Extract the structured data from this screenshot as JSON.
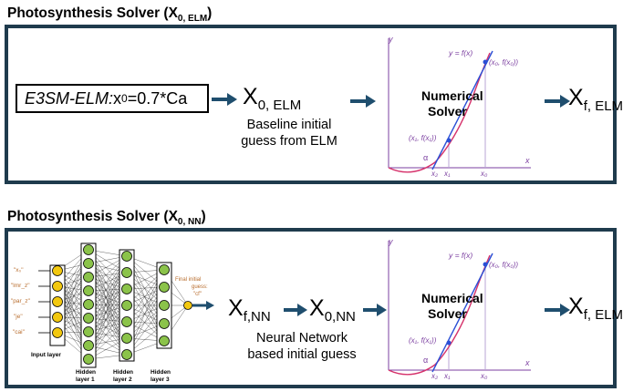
{
  "section1": {
    "title_main": "Photosynthesis Solver (X",
    "title_sub": "0, ELM",
    "title_close": ")",
    "box_label_italic": "E3SM-ELM:",
    "box_formula_pre": " x",
    "box_formula_sub": "0",
    "box_formula_post": "=0.7*Ca",
    "x0_main": "X",
    "x0_sub": "0, ELM",
    "caption_line1": "Baseline initial",
    "caption_line2": "guess from ELM",
    "output_main": "X",
    "output_sub": "f, ELM"
  },
  "section2": {
    "title_main": "Photosynthesis Solver (X",
    "title_sub": "0, NN",
    "title_close": ")",
    "xf_main": "X",
    "xf_sub": "f,NN",
    "x0_main": "X",
    "x0_sub": "0,NN",
    "caption_line1": "Neural Network",
    "caption_line2": "based initial guess",
    "output_main": "X",
    "output_sub": "f, ELM"
  },
  "nn": {
    "inputs": [
      "\"x₀\"",
      "\"lmr_z\"",
      "\"par_z\"",
      "\"je\"",
      "\"cai\""
    ],
    "input_layer_label": "Input layer",
    "hidden1_label_1": "Hidden",
    "hidden1_label_2": "layer 1",
    "hidden2_label_1": "Hidden",
    "hidden2_label_2": "layer 2",
    "hidden3_label_1": "Hidden",
    "hidden3_label_2": "layer 3",
    "output_label_1": "Final initial",
    "output_label_2": "guess:",
    "output_label_3": "\"cf\""
  },
  "graph": {
    "title_line1": "Numerical",
    "title_line2": "Solver",
    "y_axis": "y",
    "x_axis": "x",
    "curve_label": "y = f(x)",
    "point0_label": "(x₀, f(x₀))",
    "point1_label": "(x₁, f(x₁))",
    "alpha_label": "α",
    "x2_label": "x₂",
    "x1_label": "x₁",
    "x0_tick_label": "x₀"
  },
  "colors": {
    "panel_border": "#1f3b4d",
    "arrow": "#1f4e6e",
    "curve": "#d6336c",
    "tangent": "#2a4fd6",
    "axis": "#7b3fa0",
    "node_fill": "#8bc34a",
    "input_fill": "#f2c80f",
    "input_text": "#b86d2e"
  },
  "icons": {
    "arrow": "arrow-right-icon"
  }
}
